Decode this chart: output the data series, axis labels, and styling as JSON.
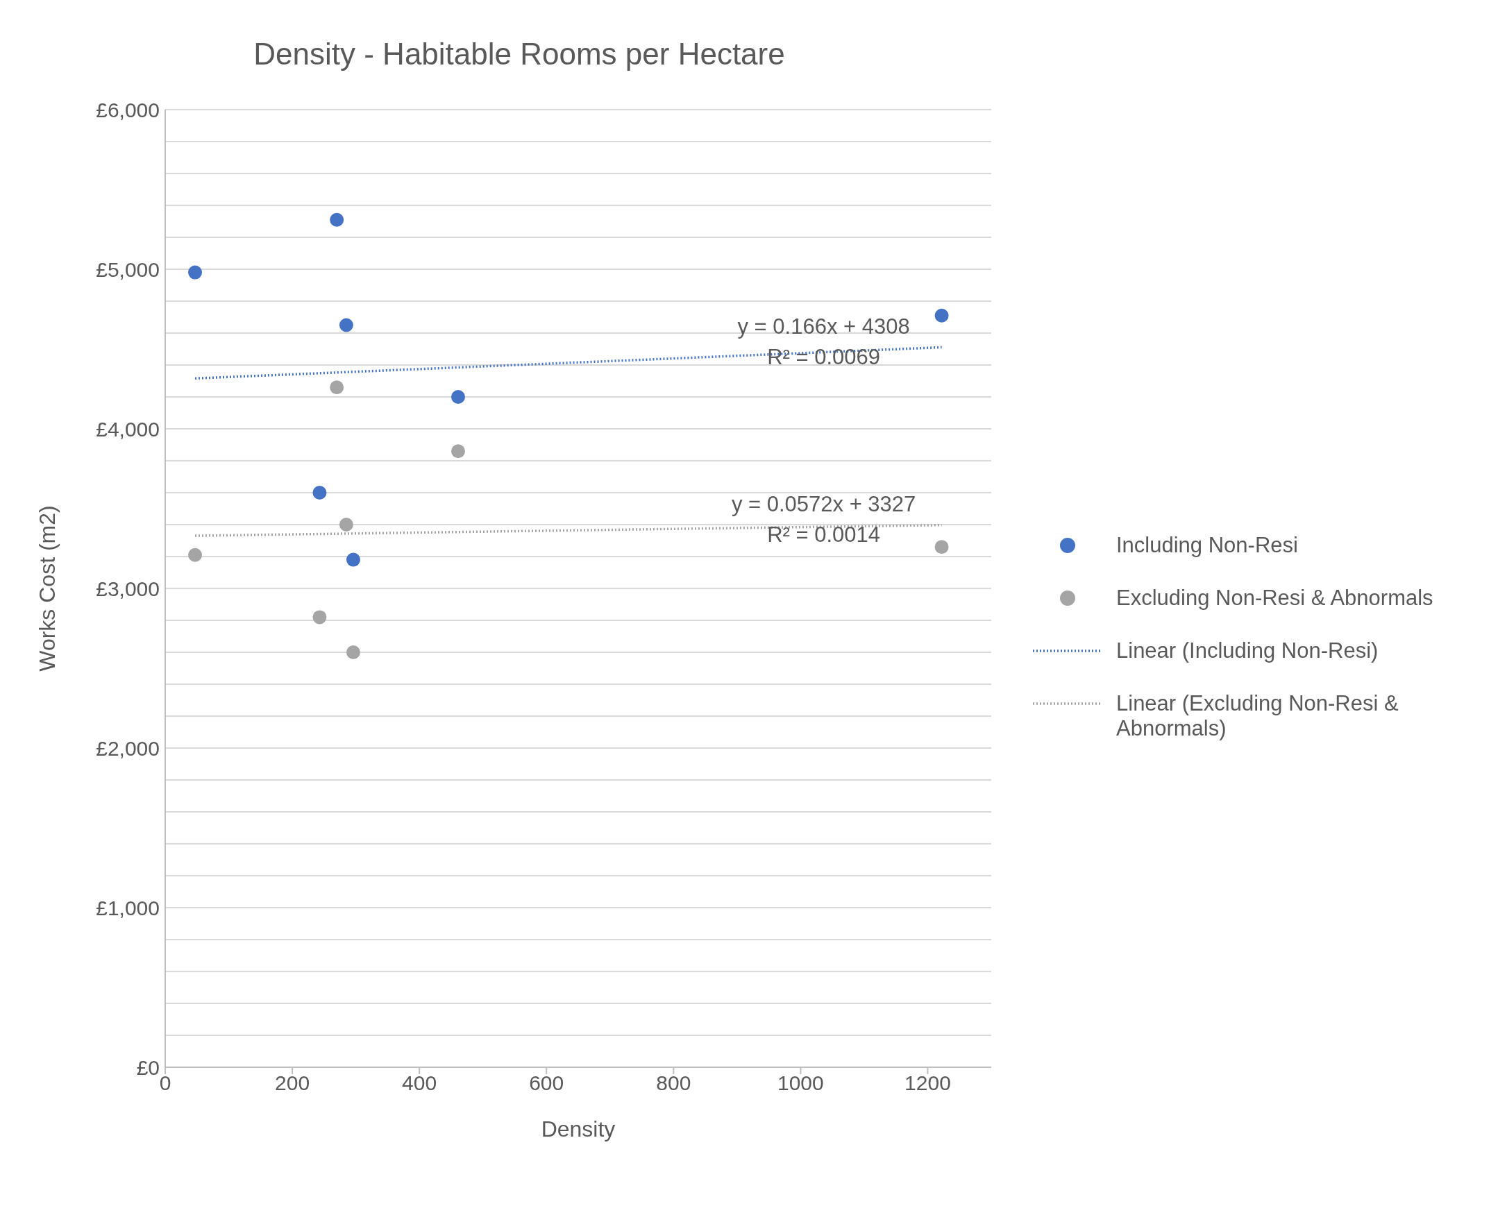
{
  "chart_data": {
    "type": "scatter",
    "title": "Density - Habitable Rooms per Hectare",
    "xlabel": "Density",
    "ylabel": "Works Cost (m2)",
    "xlim": [
      0,
      1300
    ],
    "xticks": [
      0,
      200,
      400,
      600,
      800,
      1000,
      1200
    ],
    "ylim": [
      0,
      6000
    ],
    "yticks": [
      {
        "value": 0,
        "label": "£0"
      },
      {
        "value": 200,
        "label": null
      },
      {
        "value": 400,
        "label": null
      },
      {
        "value": 600,
        "label": null
      },
      {
        "value": 800,
        "label": null
      },
      {
        "value": 1000,
        "label": "£1,000"
      },
      {
        "value": 1200,
        "label": null
      },
      {
        "value": 1400,
        "label": null
      },
      {
        "value": 1600,
        "label": null
      },
      {
        "value": 1800,
        "label": null
      },
      {
        "value": 2000,
        "label": "£2,000"
      },
      {
        "value": 2200,
        "label": null
      },
      {
        "value": 2400,
        "label": null
      },
      {
        "value": 2600,
        "label": null
      },
      {
        "value": 2800,
        "label": null
      },
      {
        "value": 3000,
        "label": "£3,000"
      },
      {
        "value": 3200,
        "label": null
      },
      {
        "value": 3400,
        "label": null
      },
      {
        "value": 3600,
        "label": null
      },
      {
        "value": 3800,
        "label": null
      },
      {
        "value": 4000,
        "label": "£4,000"
      },
      {
        "value": 4200,
        "label": null
      },
      {
        "value": 4400,
        "label": null
      },
      {
        "value": 4600,
        "label": null
      },
      {
        "value": 4800,
        "label": null
      },
      {
        "value": 5000,
        "label": "£5,000"
      },
      {
        "value": 5200,
        "label": null
      },
      {
        "value": 5400,
        "label": null
      },
      {
        "value": 5600,
        "label": null
      },
      {
        "value": 5800,
        "label": null
      },
      {
        "value": 6000,
        "label": "£6,000"
      }
    ],
    "grid": "y",
    "legend": "right",
    "marker": "circle",
    "series": [
      {
        "name": "Including Non-Resi",
        "color": "#4472c4",
        "x": [
          47,
          270,
          285,
          461,
          243,
          296,
          1222
        ],
        "values": [
          4980,
          5310,
          4650,
          4200,
          3600,
          3180,
          4710
        ]
      },
      {
        "name": "Excluding Non-Resi & Abnormals",
        "color": "#a5a5a5",
        "x": [
          47,
          270,
          285,
          461,
          243,
          296,
          1222
        ],
        "values": [
          3210,
          4260,
          3400,
          3860,
          2820,
          2600,
          3260
        ]
      },
      {
        "name": "Linear (Including Non-Resi)",
        "type": "line",
        "line_style": "dotted",
        "marker": "none",
        "color": "#4472c4",
        "x": [
          47,
          1222
        ],
        "values": [
          4316,
          4511
        ]
      },
      {
        "name": "Linear (Excluding Non-Resi & Abnormals)",
        "type": "line",
        "line_style": "dotted",
        "marker": "none",
        "color": "#a5a5a5",
        "x": [
          47,
          1222
        ],
        "values": [
          3330,
          3397
        ]
      }
    ],
    "annotations": [
      "y = 0.166x + 4308",
      "R² = 0.0069",
      "y = 0.0572x + 3327",
      "R² = 0.0014"
    ]
  }
}
